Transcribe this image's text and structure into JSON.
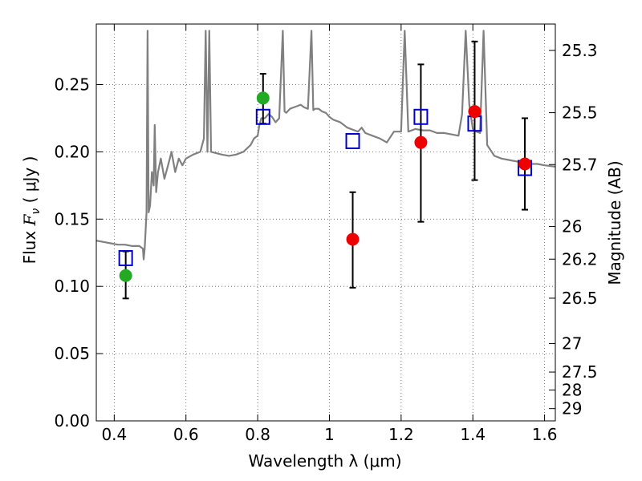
{
  "chart_data": {
    "type": "scatter",
    "xlabel": "Wavelength  λ (μm)",
    "ylabel_main": "Flux  ",
    "ylabel_math": "F",
    "ylabel_sub": "ν",
    "ylabel_unit": "  (  μJy  )",
    "ylabel_right": "Magnitude (AB)",
    "xlim": [
      0.35,
      1.63
    ],
    "ylim": [
      0.0,
      0.295
    ],
    "grid": true,
    "x_ticks": [
      {
        "v": 0.4,
        "label": "0.4"
      },
      {
        "v": 0.6,
        "label": "0.6"
      },
      {
        "v": 0.8,
        "label": "0.8"
      },
      {
        "v": 1.0,
        "label": "1"
      },
      {
        "v": 1.2,
        "label": "1.2"
      },
      {
        "v": 1.4,
        "label": "1.4"
      },
      {
        "v": 1.6,
        "label": "1.6"
      }
    ],
    "y_ticks": [
      {
        "v": 0.0,
        "label": "0.00"
      },
      {
        "v": 0.05,
        "label": "0.05"
      },
      {
        "v": 0.1,
        "label": "0.10"
      },
      {
        "v": 0.15,
        "label": "0.15"
      },
      {
        "v": 0.2,
        "label": "0.20"
      },
      {
        "v": 0.25,
        "label": "0.25"
      }
    ],
    "right_ticks": [
      {
        "v": 25.3,
        "label": "25.3"
      },
      {
        "v": 25.5,
        "label": "25.5"
      },
      {
        "v": 25.7,
        "label": "25.7"
      },
      {
        "v": 26,
        "label": "26"
      },
      {
        "v": 26.2,
        "label": "26.2"
      },
      {
        "v": 26.5,
        "label": "26.5"
      },
      {
        "v": 27,
        "label": "27"
      },
      {
        "v": 27.5,
        "label": "27.5"
      },
      {
        "v": 28,
        "label": "28"
      },
      {
        "v": 29,
        "label": "29"
      }
    ],
    "colors": {
      "spectrum": "#808080",
      "model_box": "#0000cc",
      "green": "#22aa22",
      "red": "#ee0000",
      "errorbar": "#000000",
      "grid": "#555555"
    },
    "series": [
      {
        "kind": "spectrum",
        "points": [
          [
            0.35,
            0.134
          ],
          [
            0.37,
            0.133
          ],
          [
            0.39,
            0.132
          ],
          [
            0.41,
            0.131
          ],
          [
            0.43,
            0.131
          ],
          [
            0.45,
            0.13
          ],
          [
            0.47,
            0.13
          ],
          [
            0.48,
            0.128
          ],
          [
            0.482,
            0.12
          ],
          [
            0.485,
            0.128
          ],
          [
            0.49,
            0.155
          ],
          [
            0.493,
            0.29
          ],
          [
            0.496,
            0.155
          ],
          [
            0.5,
            0.16
          ],
          [
            0.505,
            0.185
          ],
          [
            0.51,
            0.175
          ],
          [
            0.513,
            0.22
          ],
          [
            0.517,
            0.17
          ],
          [
            0.522,
            0.185
          ],
          [
            0.53,
            0.195
          ],
          [
            0.54,
            0.18
          ],
          [
            0.55,
            0.19
          ],
          [
            0.56,
            0.2
          ],
          [
            0.57,
            0.185
          ],
          [
            0.58,
            0.195
          ],
          [
            0.59,
            0.19
          ],
          [
            0.6,
            0.195
          ],
          [
            0.62,
            0.198
          ],
          [
            0.64,
            0.2
          ],
          [
            0.65,
            0.21
          ],
          [
            0.655,
            0.29
          ],
          [
            0.66,
            0.2
          ],
          [
            0.665,
            0.29
          ],
          [
            0.67,
            0.2
          ],
          [
            0.7,
            0.198
          ],
          [
            0.72,
            0.197
          ],
          [
            0.74,
            0.198
          ],
          [
            0.76,
            0.2
          ],
          [
            0.78,
            0.205
          ],
          [
            0.79,
            0.21
          ],
          [
            0.8,
            0.212
          ],
          [
            0.805,
            0.22
          ],
          [
            0.81,
            0.225
          ],
          [
            0.82,
            0.225
          ],
          [
            0.83,
            0.228
          ],
          [
            0.84,
            0.226
          ],
          [
            0.85,
            0.222
          ],
          [
            0.86,
            0.225
          ],
          [
            0.87,
            0.29
          ],
          [
            0.875,
            0.23
          ],
          [
            0.88,
            0.229
          ],
          [
            0.89,
            0.232
          ],
          [
            0.9,
            0.233
          ],
          [
            0.91,
            0.234
          ],
          [
            0.92,
            0.235
          ],
          [
            0.93,
            0.233
          ],
          [
            0.94,
            0.232
          ],
          [
            0.95,
            0.29
          ],
          [
            0.955,
            0.231
          ],
          [
            0.96,
            0.232
          ],
          [
            0.97,
            0.232
          ],
          [
            0.98,
            0.23
          ],
          [
            0.99,
            0.229
          ],
          [
            1.0,
            0.226
          ],
          [
            1.01,
            0.224
          ],
          [
            1.02,
            0.223
          ],
          [
            1.03,
            0.222
          ],
          [
            1.04,
            0.22
          ],
          [
            1.05,
            0.218
          ],
          [
            1.06,
            0.217
          ],
          [
            1.07,
            0.216
          ],
          [
            1.08,
            0.215
          ],
          [
            1.09,
            0.218
          ],
          [
            1.1,
            0.214
          ],
          [
            1.12,
            0.212
          ],
          [
            1.14,
            0.21
          ],
          [
            1.16,
            0.207
          ],
          [
            1.18,
            0.215
          ],
          [
            1.2,
            0.215
          ],
          [
            1.21,
            0.29
          ],
          [
            1.22,
            0.215
          ],
          [
            1.24,
            0.217
          ],
          [
            1.26,
            0.216
          ],
          [
            1.28,
            0.216
          ],
          [
            1.3,
            0.214
          ],
          [
            1.32,
            0.214
          ],
          [
            1.34,
            0.213
          ],
          [
            1.36,
            0.212
          ],
          [
            1.37,
            0.228
          ],
          [
            1.38,
            0.29
          ],
          [
            1.39,
            0.235
          ],
          [
            1.4,
            0.217
          ],
          [
            1.41,
            0.215
          ],
          [
            1.42,
            0.214
          ],
          [
            1.43,
            0.29
          ],
          [
            1.44,
            0.205
          ],
          [
            1.46,
            0.197
          ],
          [
            1.48,
            0.195
          ],
          [
            1.5,
            0.194
          ],
          [
            1.52,
            0.193
          ],
          [
            1.54,
            0.192
          ],
          [
            1.56,
            0.191
          ],
          [
            1.58,
            0.191
          ],
          [
            1.6,
            0.19
          ],
          [
            1.63,
            0.189
          ]
        ]
      },
      {
        "kind": "model_boxes",
        "points": [
          [
            0.432,
            0.121
          ],
          [
            0.815,
            0.226
          ],
          [
            1.065,
            0.208
          ],
          [
            1.255,
            0.226
          ],
          [
            1.405,
            0.221
          ],
          [
            1.545,
            0.188
          ]
        ]
      },
      {
        "kind": "green_points",
        "points": [
          [
            0.432,
            0.108
          ],
          [
            0.815,
            0.24
          ]
        ],
        "errors": [
          [
            0.432,
            0.091,
            0.126
          ],
          [
            0.815,
            0.221,
            0.258
          ]
        ]
      },
      {
        "kind": "red_points",
        "points": [
          [
            1.065,
            0.135
          ],
          [
            1.255,
            0.207
          ],
          [
            1.405,
            0.23
          ],
          [
            1.545,
            0.191
          ]
        ],
        "errors": [
          [
            1.065,
            0.099,
            0.17
          ],
          [
            1.255,
            0.148,
            0.265
          ],
          [
            1.405,
            0.179,
            0.282
          ],
          [
            1.545,
            0.157,
            0.225
          ]
        ]
      }
    ]
  }
}
